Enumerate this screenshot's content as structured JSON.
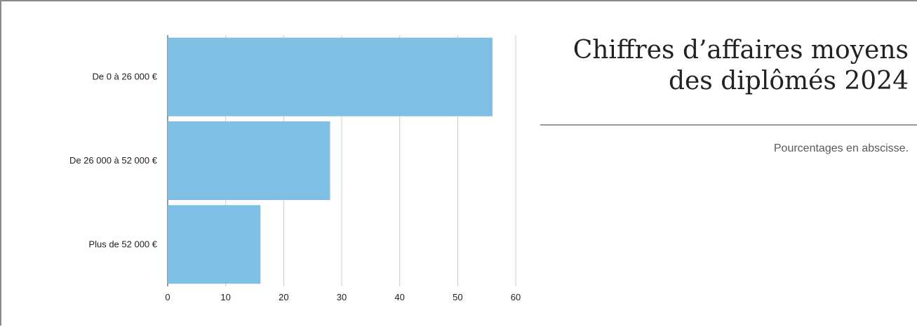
{
  "title": "Chiffres d’affaires moyens des diplômés 2024",
  "subtitle": "Pourcentages en abscisse.",
  "colors": {
    "bar": "#7fbfe4",
    "grid": "#cccccc",
    "frame": "#8a8a8a"
  },
  "chart_data": {
    "type": "bar",
    "orientation": "horizontal",
    "title": "Chiffres d’affaires moyens des diplômés 2024",
    "subtitle": "Pourcentages en abscisse.",
    "categories": [
      "De 0 à 26 000 €",
      "De 26 000 à 52 000 €",
      "Plus de 52 000 €"
    ],
    "values": [
      56,
      28,
      16
    ],
    "xlim": [
      0,
      60
    ],
    "xticks": [
      0,
      10,
      20,
      30,
      40,
      50,
      60
    ],
    "grid": true,
    "legend": "none"
  }
}
